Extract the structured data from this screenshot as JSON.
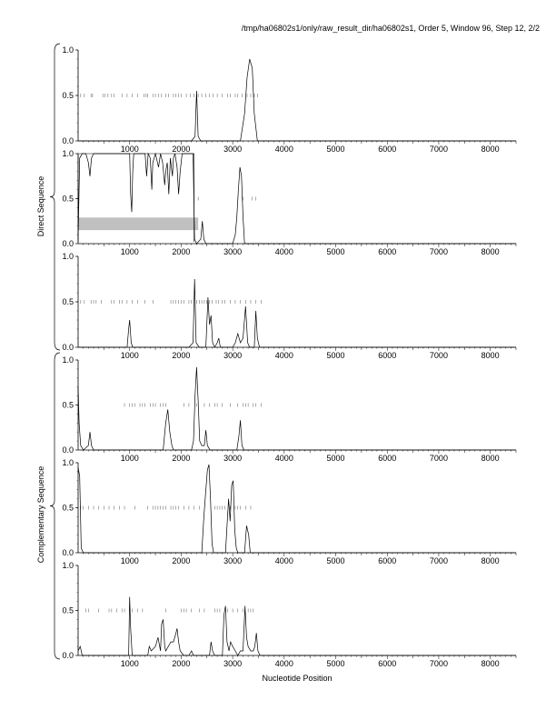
{
  "header": {
    "title": "/tmp/ha06802s1/only/raw_result_dir/ha06802s1, Order 5, Window 96, Step 12, 2/2"
  },
  "groups": [
    {
      "label": "Direct Sequence",
      "panels": [
        0,
        1,
        2
      ]
    },
    {
      "label": "Complementary Sequence",
      "panels": [
        3,
        4,
        5
      ]
    }
  ],
  "xaxis": {
    "label": "Nucleotide Position",
    "range": [
      0,
      8500
    ],
    "ticks": [
      {
        "v": 1000,
        "label": "1000"
      },
      {
        "v": 2000,
        "label": "2000"
      },
      {
        "v": 3000,
        "label": "3000"
      },
      {
        "v": 4000,
        "label": "4000"
      },
      {
        "v": 5000,
        "label": "5000"
      },
      {
        "v": 6000,
        "label": "6000"
      },
      {
        "v": 7000,
        "label": "7000"
      },
      {
        "v": 8000,
        "label": "8000"
      }
    ]
  },
  "yaxis": {
    "range": [
      0,
      1
    ],
    "ticks": [
      {
        "v": 0,
        "label": "0.0"
      },
      {
        "v": 0.5,
        "label": "0.5"
      },
      {
        "v": 1,
        "label": "1.0"
      }
    ]
  },
  "colors": {
    "line": "#000000",
    "highlight": "#c0c0c0",
    "marker": "#555555"
  },
  "chart_data": [
    {
      "type": "line",
      "name": "direct-frame-1",
      "xlim": [
        0,
        8500
      ],
      "ylim": [
        0,
        1
      ],
      "marker_y": 0.5,
      "markers": [
        50,
        120,
        250,
        280,
        480,
        520,
        580,
        650,
        700,
        850,
        950,
        1050,
        1150,
        1280,
        1320,
        1350,
        1450,
        1500,
        1560,
        1620,
        1700,
        1750,
        1850,
        1900,
        1950,
        2000,
        2100,
        2180,
        2250,
        2330,
        2400,
        2480,
        2550,
        2620,
        2700,
        2800,
        2900,
        2950,
        3050,
        3100,
        3180,
        3280,
        3350,
        3420,
        3480
      ],
      "points": [
        [
          0,
          0
        ],
        [
          2200,
          0
        ],
        [
          2270,
          0.05
        ],
        [
          2300,
          0.55
        ],
        [
          2330,
          0.05
        ],
        [
          2380,
          0
        ],
        [
          3150,
          0
        ],
        [
          3230,
          0.3
        ],
        [
          3280,
          0.7
        ],
        [
          3330,
          0.9
        ],
        [
          3380,
          0.8
        ],
        [
          3420,
          0.3
        ],
        [
          3480,
          0
        ],
        [
          8500,
          0
        ]
      ]
    },
    {
      "type": "line",
      "name": "direct-frame-2",
      "xlim": [
        0,
        8500
      ],
      "ylim": [
        0,
        1
      ],
      "marker_y": 0.5,
      "markers": [
        2330,
        3100,
        3200,
        3380,
        3450
      ],
      "highlight": {
        "x": [
          0,
          2330
        ],
        "y": [
          0.15,
          0.29
        ]
      },
      "points": [
        [
          0,
          0.05
        ],
        [
          30,
          0.95
        ],
        [
          80,
          1.0
        ],
        [
          150,
          1.0
        ],
        [
          200,
          0.9
        ],
        [
          230,
          0.75
        ],
        [
          260,
          0.95
        ],
        [
          300,
          1.0
        ],
        [
          1000,
          1.0
        ],
        [
          1020,
          0.55
        ],
        [
          1040,
          0.35
        ],
        [
          1060,
          0.8
        ],
        [
          1080,
          1.0
        ],
        [
          1300,
          1.0
        ],
        [
          1330,
          0.75
        ],
        [
          1360,
          1.0
        ],
        [
          1400,
          0.95
        ],
        [
          1430,
          0.6
        ],
        [
          1450,
          0.9
        ],
        [
          1500,
          1.0
        ],
        [
          1560,
          0.85
        ],
        [
          1600,
          1.0
        ],
        [
          1640,
          0.9
        ],
        [
          1680,
          0.65
        ],
        [
          1700,
          0.8
        ],
        [
          1730,
          0.9
        ],
        [
          1760,
          0.55
        ],
        [
          1790,
          0.95
        ],
        [
          1830,
          0.75
        ],
        [
          1850,
          0.95
        ],
        [
          1880,
          1.0
        ],
        [
          1920,
          0.85
        ],
        [
          1950,
          0.55
        ],
        [
          1980,
          0.8
        ],
        [
          2020,
          1.0
        ],
        [
          2230,
          1.0
        ],
        [
          2260,
          0.05
        ],
        [
          2300,
          0
        ],
        [
          2380,
          0.05
        ],
        [
          2410,
          0.25
        ],
        [
          2440,
          0.05
        ],
        [
          2480,
          0
        ],
        [
          3000,
          0
        ],
        [
          3050,
          0.1
        ],
        [
          3080,
          0.3
        ],
        [
          3110,
          0.6
        ],
        [
          3140,
          0.85
        ],
        [
          3170,
          0.75
        ],
        [
          3200,
          0.3
        ],
        [
          3230,
          0
        ],
        [
          8500,
          0
        ]
      ]
    },
    {
      "type": "line",
      "name": "direct-frame-3",
      "xlim": [
        0,
        8500
      ],
      "ylim": [
        0,
        1
      ],
      "marker_y": 0.5,
      "markers": [
        50,
        120,
        250,
        300,
        350,
        450,
        650,
        700,
        800,
        850,
        950,
        1050,
        1150,
        1300,
        1450,
        1800,
        1850,
        1900,
        1950,
        2000,
        2050,
        2150,
        2200,
        2300,
        2350,
        2400,
        2450,
        2500,
        2550,
        2600,
        2680,
        2730,
        2800,
        2850,
        2950,
        3050,
        3150,
        3250,
        3350,
        3450,
        3550
      ],
      "points": [
        [
          0,
          0
        ],
        [
          950,
          0
        ],
        [
          980,
          0.2
        ],
        [
          1000,
          0.3
        ],
        [
          1030,
          0.05
        ],
        [
          1060,
          0
        ],
        [
          2150,
          0
        ],
        [
          2230,
          0.05
        ],
        [
          2260,
          0.75
        ],
        [
          2290,
          0.05
        ],
        [
          2350,
          0
        ],
        [
          2480,
          0
        ],
        [
          2520,
          0.55
        ],
        [
          2550,
          0.25
        ],
        [
          2580,
          0.35
        ],
        [
          2610,
          0.05
        ],
        [
          2650,
          0
        ],
        [
          2700,
          0.05
        ],
        [
          2730,
          0.1
        ],
        [
          2760,
          0
        ],
        [
          3000,
          0
        ],
        [
          3050,
          0.05
        ],
        [
          3100,
          0.15
        ],
        [
          3150,
          0.05
        ],
        [
          3200,
          0.1
        ],
        [
          3250,
          0.45
        ],
        [
          3290,
          0.05
        ],
        [
          3330,
          0
        ],
        [
          3420,
          0
        ],
        [
          3450,
          0.4
        ],
        [
          3480,
          0.1
        ],
        [
          3520,
          0
        ],
        [
          8500,
          0
        ]
      ]
    },
    {
      "type": "line",
      "name": "complementary-frame-1",
      "xlim": [
        0,
        8500
      ],
      "ylim": [
        0,
        1
      ],
      "marker_y": 0.5,
      "markers": [
        900,
        1000,
        1050,
        1100,
        1200,
        1250,
        1300,
        1400,
        1450,
        1500,
        1600,
        1650,
        1700,
        2050,
        2150,
        2300,
        2450,
        2550,
        2650,
        2700,
        2800,
        2950,
        3100,
        3200,
        3250,
        3300,
        3400,
        3450,
        3550
      ],
      "points": [
        [
          0,
          0.7
        ],
        [
          20,
          0.3
        ],
        [
          50,
          0.05
        ],
        [
          100,
          0
        ],
        [
          200,
          0.05
        ],
        [
          230,
          0.2
        ],
        [
          260,
          0.05
        ],
        [
          300,
          0
        ],
        [
          1650,
          0
        ],
        [
          1700,
          0.3
        ],
        [
          1740,
          0.45
        ],
        [
          1780,
          0.2
        ],
        [
          1820,
          0.05
        ],
        [
          1850,
          0
        ],
        [
          2200,
          0
        ],
        [
          2240,
          0.1
        ],
        [
          2270,
          0.6
        ],
        [
          2300,
          0.92
        ],
        [
          2330,
          0.55
        ],
        [
          2360,
          0.1
        ],
        [
          2400,
          0.05
        ],
        [
          2450,
          0.05
        ],
        [
          2480,
          0.22
        ],
        [
          2510,
          0.05
        ],
        [
          2560,
          0
        ],
        [
          3080,
          0
        ],
        [
          3120,
          0.15
        ],
        [
          3150,
          0.33
        ],
        [
          3180,
          0.05
        ],
        [
          3220,
          0
        ],
        [
          8500,
          0
        ]
      ]
    },
    {
      "type": "line",
      "name": "complementary-frame-2",
      "xlim": [
        0,
        8500
      ],
      "ylim": [
        0,
        1
      ],
      "marker_y": 0.5,
      "markers": [
        50,
        100,
        200,
        300,
        400,
        500,
        600,
        700,
        800,
        900,
        1100,
        1350,
        1450,
        1500,
        1550,
        1600,
        1650,
        1700,
        1800,
        1850,
        1900,
        1950,
        2050,
        2150,
        2250,
        2350,
        2650,
        2700,
        2750,
        2800,
        2850,
        2950,
        3050,
        3100,
        3150,
        3250,
        3350
      ],
      "points": [
        [
          0,
          0.95
        ],
        [
          30,
          0.85
        ],
        [
          60,
          0.05
        ],
        [
          100,
          0
        ],
        [
          2400,
          0
        ],
        [
          2440,
          0.4
        ],
        [
          2480,
          0.7
        ],
        [
          2510,
          0.92
        ],
        [
          2540,
          0.98
        ],
        [
          2570,
          0.6
        ],
        [
          2600,
          0.1
        ],
        [
          2630,
          0
        ],
        [
          2860,
          0
        ],
        [
          2890,
          0.3
        ],
        [
          2920,
          0.6
        ],
        [
          2950,
          0.35
        ],
        [
          2980,
          0.75
        ],
        [
          3010,
          0.8
        ],
        [
          3040,
          0.25
        ],
        [
          3070,
          0.05
        ],
        [
          3100,
          0
        ],
        [
          3230,
          0
        ],
        [
          3270,
          0.3
        ],
        [
          3310,
          0.2
        ],
        [
          3340,
          0
        ],
        [
          8500,
          0
        ]
      ]
    },
    {
      "type": "line",
      "name": "complementary-frame-3",
      "xlim": [
        0,
        8500
      ],
      "ylim": [
        0,
        1
      ],
      "marker_y": 0.5,
      "markers": [
        150,
        200,
        400,
        600,
        650,
        750,
        850,
        900,
        1050,
        1150,
        1250,
        1700,
        2000,
        2050,
        2100,
        2200,
        2350,
        2450,
        2650,
        2700,
        2750,
        2900,
        3000,
        3100,
        3200,
        3300,
        3350,
        3400
      ],
      "points": [
        [
          0,
          0.05
        ],
        [
          40,
          0.1
        ],
        [
          80,
          0
        ],
        [
          980,
          0
        ],
        [
          1000,
          0.65
        ],
        [
          1020,
          0.3
        ],
        [
          1050,
          0
        ],
        [
          1350,
          0
        ],
        [
          1380,
          0.1
        ],
        [
          1420,
          0.05
        ],
        [
          1500,
          0.1
        ],
        [
          1550,
          0.2
        ],
        [
          1600,
          0.05
        ],
        [
          1620,
          0.35
        ],
        [
          1650,
          0.4
        ],
        [
          1680,
          0.1
        ],
        [
          1700,
          0.05
        ],
        [
          1800,
          0.15
        ],
        [
          1850,
          0.15
        ],
        [
          1900,
          0.25
        ],
        [
          1920,
          0.3
        ],
        [
          1950,
          0.15
        ],
        [
          1980,
          0.05
        ],
        [
          2050,
          0
        ],
        [
          2150,
          0
        ],
        [
          2200,
          0.05
        ],
        [
          2240,
          0
        ],
        [
          2550,
          0
        ],
        [
          2580,
          0.15
        ],
        [
          2610,
          0.05
        ],
        [
          2650,
          0
        ],
        [
          2800,
          0
        ],
        [
          2830,
          0.45
        ],
        [
          2860,
          0.55
        ],
        [
          2890,
          0.15
        ],
        [
          2930,
          0.05
        ],
        [
          2960,
          0.15
        ],
        [
          3000,
          0.1
        ],
        [
          3050,
          0.05
        ],
        [
          3100,
          0
        ],
        [
          3150,
          0.05
        ],
        [
          3200,
          0.05
        ],
        [
          3240,
          0.55
        ],
        [
          3270,
          0.2
        ],
        [
          3300,
          0.1
        ],
        [
          3350,
          0.05
        ],
        [
          3400,
          0.05
        ],
        [
          3430,
          0.1
        ],
        [
          3460,
          0.25
        ],
        [
          3490,
          0.05
        ],
        [
          3530,
          0
        ],
        [
          8500,
          0
        ]
      ]
    }
  ]
}
